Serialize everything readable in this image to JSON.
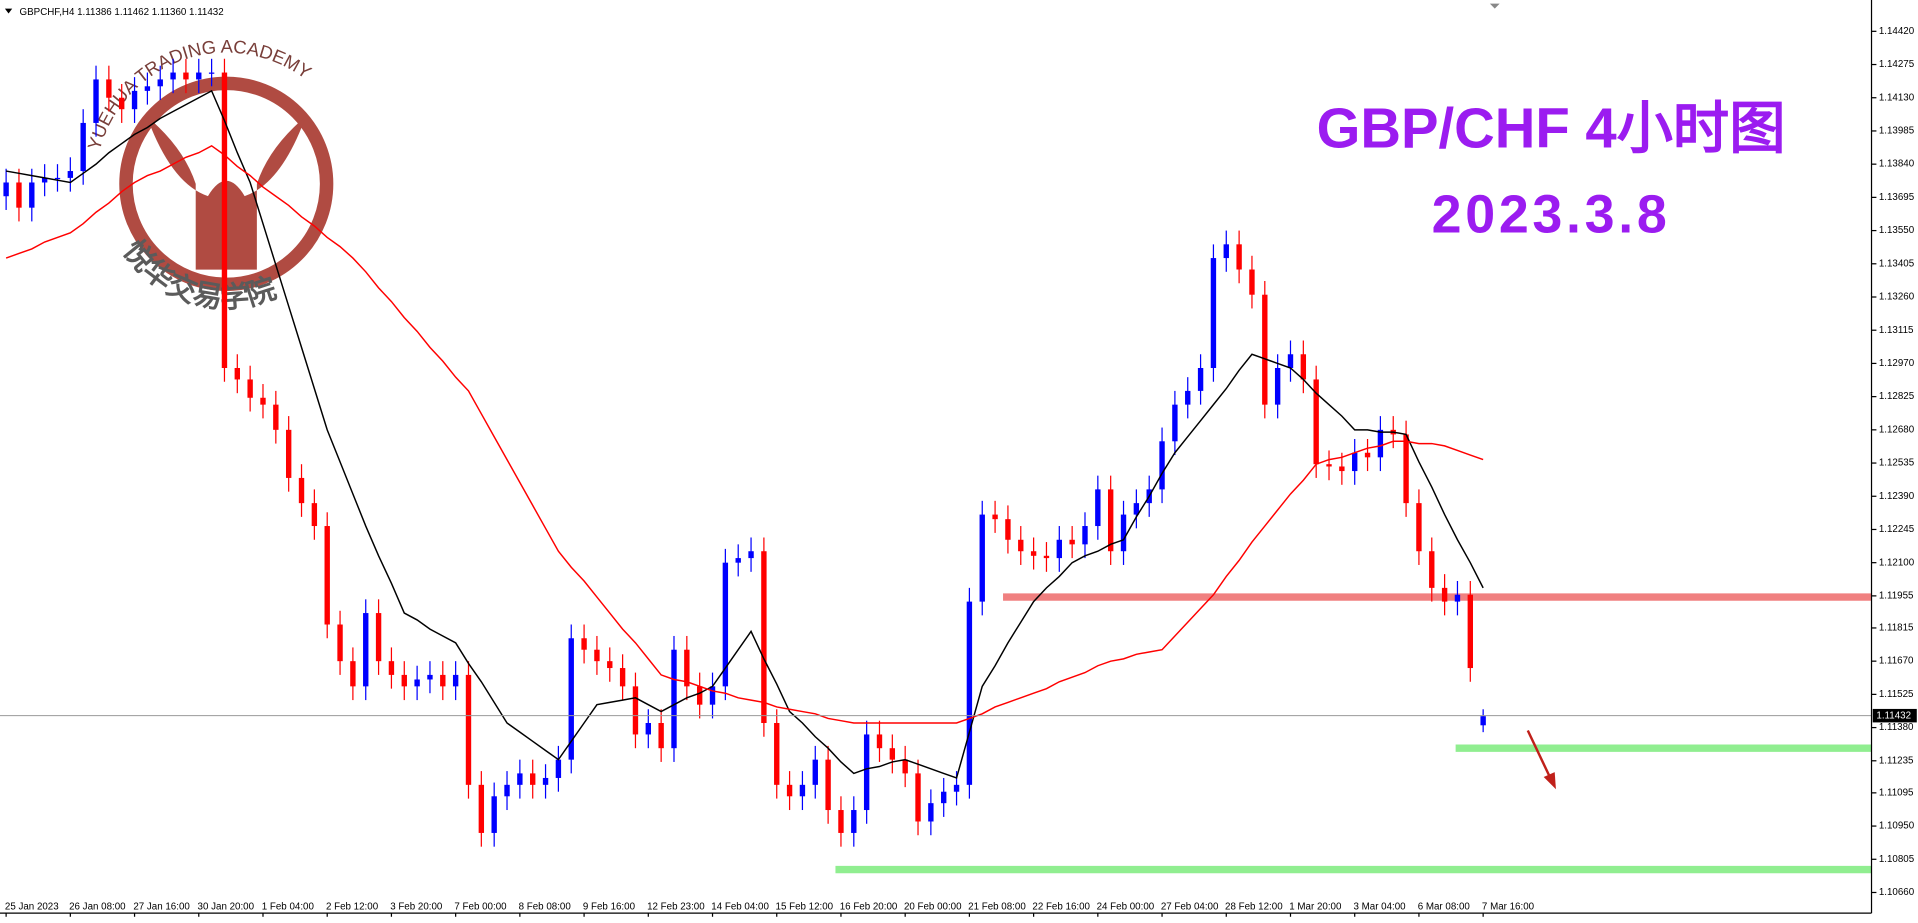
{
  "chart_data": {
    "type": "candlestick",
    "header": "GBPCHF,H4  1.11386 1.11462 1.11360 1.11432",
    "title": "GBP/CHF 4小时图",
    "subtitle": "2023.3.8",
    "watermark_top": "YUEHUA TRADING ACADEMY",
    "watermark_bottom": "悦华交易学院",
    "up_color": "#0000ff",
    "down_color": "#ff0000",
    "categories": [
      "25 Jan 2023",
      null,
      null,
      null,
      null,
      "26 Jan 08:00",
      null,
      null,
      null,
      null,
      "27 Jan 16:00",
      null,
      null,
      null,
      null,
      "30 Jan 20:00",
      null,
      null,
      null,
      null,
      "1 Feb 04:00",
      null,
      null,
      null,
      null,
      "2 Feb 12:00",
      null,
      null,
      null,
      null,
      "3 Feb 20:00",
      null,
      null,
      null,
      null,
      "7 Feb 00:00",
      null,
      null,
      null,
      null,
      "8 Feb 08:00",
      null,
      null,
      null,
      null,
      "9 Feb 16:00",
      null,
      null,
      null,
      null,
      "12 Feb 23:00",
      null,
      null,
      null,
      null,
      "14 Feb 04:00",
      null,
      null,
      null,
      null,
      "15 Feb 12:00",
      null,
      null,
      null,
      null,
      "16 Feb 20:00",
      null,
      null,
      null,
      null,
      "20 Feb 00:00",
      null,
      null,
      null,
      null,
      "21 Feb 08:00",
      null,
      null,
      null,
      null,
      "22 Feb 16:00",
      null,
      null,
      null,
      null,
      "24 Feb 00:00",
      null,
      null,
      null,
      null,
      "27 Feb 04:00",
      null,
      null,
      null,
      null,
      "28 Feb 12:00",
      null,
      null,
      null,
      null,
      "1 Mar 20:00",
      null,
      null,
      null,
      null,
      "3 Mar 04:00",
      null,
      null,
      null,
      null,
      "6 Mar 08:00",
      null,
      null,
      null,
      null,
      "7 Mar 16:00"
    ],
    "open": [
      1.137,
      1.1376,
      1.1365,
      1.1376,
      1.1378,
      1.1378,
      1.1381,
      1.1402,
      1.1421,
      1.1413,
      1.1408,
      1.1416,
      1.1418,
      1.1421,
      1.1424,
      1.1421,
      1.1424,
      1.1424,
      1.1295,
      1.129,
      1.1282,
      1.1279,
      1.1268,
      1.1247,
      1.1236,
      1.1226,
      1.1183,
      1.1167,
      1.1156,
      1.1188,
      1.1167,
      1.1161,
      1.1156,
      1.1159,
      1.1161,
      1.1156,
      1.1161,
      1.1113,
      1.1092,
      1.1108,
      1.1113,
      1.1118,
      1.1113,
      1.1116,
      1.1124,
      1.1177,
      1.1172,
      1.1167,
      1.1164,
      1.1156,
      1.1135,
      1.114,
      1.1129,
      1.1172,
      1.1156,
      1.1148,
      1.1156,
      1.121,
      1.1212,
      1.1215,
      1.114,
      1.1113,
      1.1108,
      1.1113,
      1.1124,
      1.1102,
      1.1092,
      1.1102,
      1.1135,
      1.1129,
      1.1124,
      1.1118,
      1.1097,
      1.1105,
      1.111,
      1.1113,
      1.1193,
      1.1231,
      1.1229,
      1.122,
      1.1215,
      1.1213,
      1.1212,
      1.122,
      1.1218,
      1.1226,
      1.1242,
      1.1215,
      1.1231,
      1.1236,
      1.1242,
      1.1263,
      1.1279,
      1.1285,
      1.1295,
      1.1343,
      1.1349,
      1.1338,
      1.1327,
      1.1279,
      1.1295,
      1.1301,
      1.129,
      1.1253,
      1.1252,
      1.125,
      1.1258,
      1.1256,
      1.1268,
      1.1266,
      1.1236,
      1.1215,
      1.1199,
      1.1193,
      1.1196,
      1.1139
    ],
    "high": [
      1.1382,
      1.1382,
      1.1382,
      1.1384,
      1.1384,
      1.1387,
      1.1408,
      1.1427,
      1.1427,
      1.1419,
      1.1422,
      1.1424,
      1.1427,
      1.143,
      1.143,
      1.143,
      1.143,
      1.143,
      1.1301,
      1.1296,
      1.1288,
      1.1285,
      1.1274,
      1.1253,
      1.1242,
      1.1232,
      1.1189,
      1.1173,
      1.1194,
      1.1194,
      1.1173,
      1.1167,
      1.1165,
      1.1167,
      1.1167,
      1.1167,
      1.1167,
      1.1119,
      1.1114,
      1.1119,
      1.1124,
      1.1124,
      1.1122,
      1.113,
      1.1183,
      1.1183,
      1.1178,
      1.1173,
      1.117,
      1.1162,
      1.1146,
      1.1146,
      1.1178,
      1.1178,
      1.1162,
      1.1162,
      1.1216,
      1.1218,
      1.1221,
      1.1221,
      1.1146,
      1.1119,
      1.1119,
      1.113,
      1.113,
      1.1108,
      1.1108,
      1.1141,
      1.1141,
      1.1135,
      1.113,
      1.1124,
      1.1111,
      1.1116,
      1.1119,
      1.1199,
      1.1237,
      1.1237,
      1.1235,
      1.1226,
      1.1221,
      1.1219,
      1.1226,
      1.1226,
      1.1232,
      1.1248,
      1.1248,
      1.1237,
      1.1242,
      1.1248,
      1.1269,
      1.1285,
      1.1291,
      1.1301,
      1.1349,
      1.1355,
      1.1355,
      1.1344,
      1.1333,
      1.1301,
      1.1307,
      1.1307,
      1.1296,
      1.1259,
      1.1258,
      1.1264,
      1.1264,
      1.1274,
      1.1274,
      1.1272,
      1.1242,
      1.1221,
      1.1205,
      1.1202,
      1.1202,
      1.1146
    ],
    "low": [
      1.1364,
      1.1359,
      1.1359,
      1.137,
      1.1372,
      1.1372,
      1.1375,
      1.1396,
      1.1407,
      1.1402,
      1.1402,
      1.141,
      1.1412,
      1.1415,
      1.1415,
      1.1415,
      1.1418,
      1.1289,
      1.1284,
      1.1276,
      1.1273,
      1.1262,
      1.1241,
      1.123,
      1.122,
      1.1177,
      1.1161,
      1.115,
      1.115,
      1.1161,
      1.1155,
      1.115,
      1.115,
      1.1153,
      1.115,
      1.115,
      1.1107,
      1.1086,
      1.1086,
      1.1102,
      1.1107,
      1.1107,
      1.1107,
      1.111,
      1.1118,
      1.1166,
      1.1161,
      1.1158,
      1.115,
      1.1129,
      1.1129,
      1.1123,
      1.1123,
      1.115,
      1.1142,
      1.1142,
      1.115,
      1.1204,
      1.1206,
      1.1134,
      1.1107,
      1.1102,
      1.1102,
      1.1107,
      1.1096,
      1.1086,
      1.1086,
      1.1096,
      1.1123,
      1.1118,
      1.1112,
      1.1091,
      1.1091,
      1.1099,
      1.1104,
      1.1107,
      1.1187,
      1.1223,
      1.1214,
      1.1209,
      1.1207,
      1.1206,
      1.1206,
      1.1212,
      1.1212,
      1.122,
      1.1209,
      1.1209,
      1.1225,
      1.123,
      1.1236,
      1.1257,
      1.1273,
      1.1279,
      1.1289,
      1.1337,
      1.1332,
      1.1321,
      1.1273,
      1.1273,
      1.1289,
      1.1284,
      1.1247,
      1.1246,
      1.1244,
      1.1244,
      1.125,
      1.125,
      1.126,
      1.123,
      1.1209,
      1.1193,
      1.1187,
      1.1187,
      1.1158,
      1.1136
    ],
    "close": [
      1.1376,
      1.1365,
      1.1376,
      1.1378,
      1.1378,
      1.1381,
      1.1402,
      1.1421,
      1.1413,
      1.1408,
      1.1416,
      1.1418,
      1.1421,
      1.1424,
      1.1421,
      1.1424,
      1.1424,
      1.1295,
      1.129,
      1.1282,
      1.1279,
      1.1268,
      1.1247,
      1.1236,
      1.1226,
      1.1183,
      1.1167,
      1.1156,
      1.1188,
      1.1167,
      1.1161,
      1.1156,
      1.1159,
      1.1161,
      1.1156,
      1.1161,
      1.1113,
      1.1092,
      1.1108,
      1.1113,
      1.1118,
      1.1113,
      1.1116,
      1.1124,
      1.1177,
      1.1172,
      1.1167,
      1.1164,
      1.1156,
      1.1135,
      1.114,
      1.1129,
      1.1172,
      1.1156,
      1.1148,
      1.1156,
      1.121,
      1.1212,
      1.1215,
      1.114,
      1.1113,
      1.1108,
      1.1113,
      1.1124,
      1.1102,
      1.1092,
      1.1102,
      1.1135,
      1.1129,
      1.1124,
      1.1118,
      1.1097,
      1.1105,
      1.111,
      1.1113,
      1.1193,
      1.1231,
      1.1229,
      1.122,
      1.1215,
      1.1213,
      1.1212,
      1.122,
      1.1218,
      1.1226,
      1.1242,
      1.1215,
      1.1231,
      1.1236,
      1.1242,
      1.1263,
      1.1279,
      1.1285,
      1.1295,
      1.1343,
      1.1349,
      1.1338,
      1.1327,
      1.1279,
      1.1295,
      1.1301,
      1.129,
      1.1253,
      1.1252,
      1.125,
      1.1258,
      1.1256,
      1.1268,
      1.1266,
      1.1236,
      1.1215,
      1.1199,
      1.1193,
      1.1196,
      1.1164,
      1.1143
    ],
    "ma_lines": [
      {
        "color": "#000000",
        "values": [
          1.1381,
          1.138,
          1.1379,
          1.1378,
          1.1377,
          1.1376,
          1.138,
          1.1384,
          1.1389,
          1.1393,
          1.1397,
          1.14,
          1.1404,
          1.1407,
          1.141,
          1.1413,
          1.1416,
          1.1403,
          1.1389,
          1.1376,
          1.1358,
          1.134,
          1.1322,
          1.1304,
          1.1286,
          1.1268,
          1.1254,
          1.124,
          1.1226,
          1.1213,
          1.1201,
          1.1188,
          1.1185,
          1.1181,
          1.1178,
          1.1175,
          1.1166,
          1.1158,
          1.1149,
          1.114,
          1.1136,
          1.1132,
          1.1128,
          1.1124,
          1.1132,
          1.114,
          1.1148,
          1.1149,
          1.115,
          1.1151,
          1.1148,
          1.1145,
          1.1148,
          1.1151,
          1.1153,
          1.1156,
          1.1164,
          1.1172,
          1.118,
          1.1168,
          1.1157,
          1.1145,
          1.114,
          1.1134,
          1.1129,
          1.1123,
          1.1118,
          1.112,
          1.1121,
          1.1123,
          1.1124,
          1.1122,
          1.112,
          1.1118,
          1.1116,
          1.1136,
          1.1156,
          1.1165,
          1.1175,
          1.1184,
          1.1193,
          1.1199,
          1.1204,
          1.121,
          1.1213,
          1.1215,
          1.1218,
          1.122,
          1.123,
          1.1239,
          1.1249,
          1.1258,
          1.1265,
          1.1272,
          1.1279,
          1.1286,
          1.1294,
          1.1301,
          1.1299,
          1.1297,
          1.1295,
          1.129,
          1.1284,
          1.1279,
          1.1274,
          1.1268,
          1.1268,
          1.1267,
          1.1267,
          1.1266,
          1.1254,
          1.1243,
          1.1231,
          1.122,
          1.121,
          1.1199
        ]
      },
      {
        "color": "#ff0000",
        "values": [
          1.1343,
          1.1345,
          1.1347,
          1.135,
          1.1352,
          1.1354,
          1.1358,
          1.1363,
          1.1367,
          1.1372,
          1.1376,
          1.1379,
          1.1381,
          1.1384,
          1.1387,
          1.1389,
          1.1392,
          1.1388,
          1.1383,
          1.1379,
          1.1374,
          1.137,
          1.1366,
          1.1361,
          1.1357,
          1.1352,
          1.1348,
          1.1343,
          1.1337,
          1.133,
          1.1324,
          1.1317,
          1.1311,
          1.1304,
          1.1298,
          1.1291,
          1.1285,
          1.1275,
          1.1265,
          1.1255,
          1.1245,
          1.1235,
          1.1225,
          1.1215,
          1.1208,
          1.1202,
          1.1195,
          1.1188,
          1.1181,
          1.1175,
          1.1168,
          1.1161,
          1.1159,
          1.1158,
          1.1156,
          1.1154,
          1.1153,
          1.1151,
          1.115,
          1.1149,
          1.1147,
          1.1146,
          1.1145,
          1.1144,
          1.1142,
          1.1141,
          1.114,
          1.114,
          1.114,
          1.114,
          1.114,
          1.114,
          1.114,
          1.114,
          1.114,
          1.1142,
          1.1144,
          1.1147,
          1.1149,
          1.1151,
          1.1153,
          1.1155,
          1.1158,
          1.116,
          1.1162,
          1.1165,
          1.1167,
          1.1168,
          1.117,
          1.1171,
          1.1172,
          1.1178,
          1.1184,
          1.119,
          1.1196,
          1.1204,
          1.1211,
          1.1219,
          1.1226,
          1.1233,
          1.124,
          1.1246,
          1.1253,
          1.1255,
          1.1256,
          1.1258,
          1.126,
          1.1261,
          1.1263,
          1.1263,
          1.1262,
          1.1262,
          1.1261,
          1.1259,
          1.1257,
          1.1255
        ]
      }
    ],
    "levels": [
      {
        "value": 1.1195,
        "color": "#f08080"
      },
      {
        "value": 1.1129,
        "color": "#90ee90"
      },
      {
        "value": 1.1076,
        "color": "#90ee90"
      }
    ],
    "last_price": 1.11432,
    "ylim": [
      1.1057,
      1.1453
    ],
    "yticks": [
      {
        "value": 1.1442,
        "label": "1.14420"
      },
      1.14275,
      {
        "value": 1.1413,
        "label": "1.14130"
      },
      1.13985,
      {
        "value": 1.1384,
        "label": "1.13840"
      },
      1.13695,
      {
        "value": 1.1355,
        "label": "1.13550"
      },
      1.13405,
      {
        "value": 1.1326,
        "label": "1.13260"
      },
      1.13115,
      {
        "value": 1.1297,
        "label": "1.12970"
      },
      1.12825,
      {
        "value": 1.1268,
        "label": "1.12680"
      },
      1.12535,
      {
        "value": 1.1239,
        "label": "1.12390"
      },
      1.12245,
      {
        "value": 1.121,
        "label": "1.12100"
      },
      1.11955,
      1.11815,
      {
        "value": 1.1167,
        "label": "1.11670"
      },
      1.11525,
      {
        "value": 1.1138,
        "label": "1.11380"
      },
      1.11235,
      1.11095,
      {
        "value": 1.1095,
        "label": "1.10950"
      },
      1.10805,
      {
        "value": 1.1066,
        "label": "1.10660"
      }
    ]
  }
}
